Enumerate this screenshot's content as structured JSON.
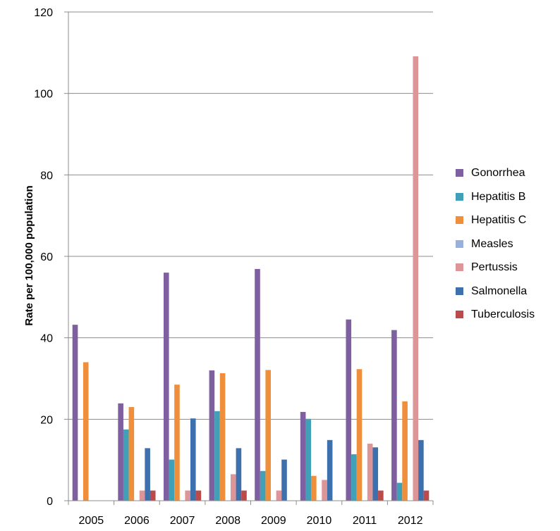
{
  "chart_data": {
    "type": "bar",
    "title": "",
    "xlabel": "",
    "ylabel": "Rate per 100,000 population",
    "ylim": [
      0,
      120
    ],
    "yticks": [
      "0",
      "20",
      "40",
      "60",
      "80",
      "100",
      "120"
    ],
    "grid": true,
    "legend_position": "right",
    "categories": [
      "2005",
      "2006",
      "2007",
      "2008",
      "2009",
      "2010",
      "2011",
      "2012"
    ],
    "series": [
      {
        "name": "Gonorrhea",
        "color": "#7E5FA0",
        "values": [
          43.2,
          23.9,
          56.0,
          32.0,
          56.9,
          21.8,
          44.5,
          41.9
        ]
      },
      {
        "name": "Hepatitis B",
        "color": "#40A0B8",
        "values": [
          0,
          17.5,
          10.1,
          22.0,
          7.3,
          20.1,
          11.4,
          4.4
        ]
      },
      {
        "name": "Hepatitis C",
        "color": "#EF8F3C",
        "values": [
          34.0,
          23.0,
          28.5,
          31.3,
          32.1,
          6.1,
          32.3,
          24.4
        ]
      },
      {
        "name": "Measles",
        "color": "#98B1DC",
        "values": [
          0,
          0,
          0,
          0,
          0,
          0,
          0,
          0
        ]
      },
      {
        "name": "Pertussis",
        "color": "#DD9597",
        "values": [
          0,
          2.5,
          2.5,
          6.5,
          2.5,
          5.1,
          14.0,
          109.1
        ]
      },
      {
        "name": "Salmonella",
        "color": "#3F70AE",
        "values": [
          0,
          12.9,
          20.2,
          12.9,
          10.1,
          14.9,
          13.1,
          14.9
        ]
      },
      {
        "name": "Tuberculosis",
        "color": "#BD4A4A",
        "values": [
          0,
          2.5,
          2.5,
          2.5,
          0,
          0,
          2.5,
          2.5
        ]
      }
    ]
  }
}
